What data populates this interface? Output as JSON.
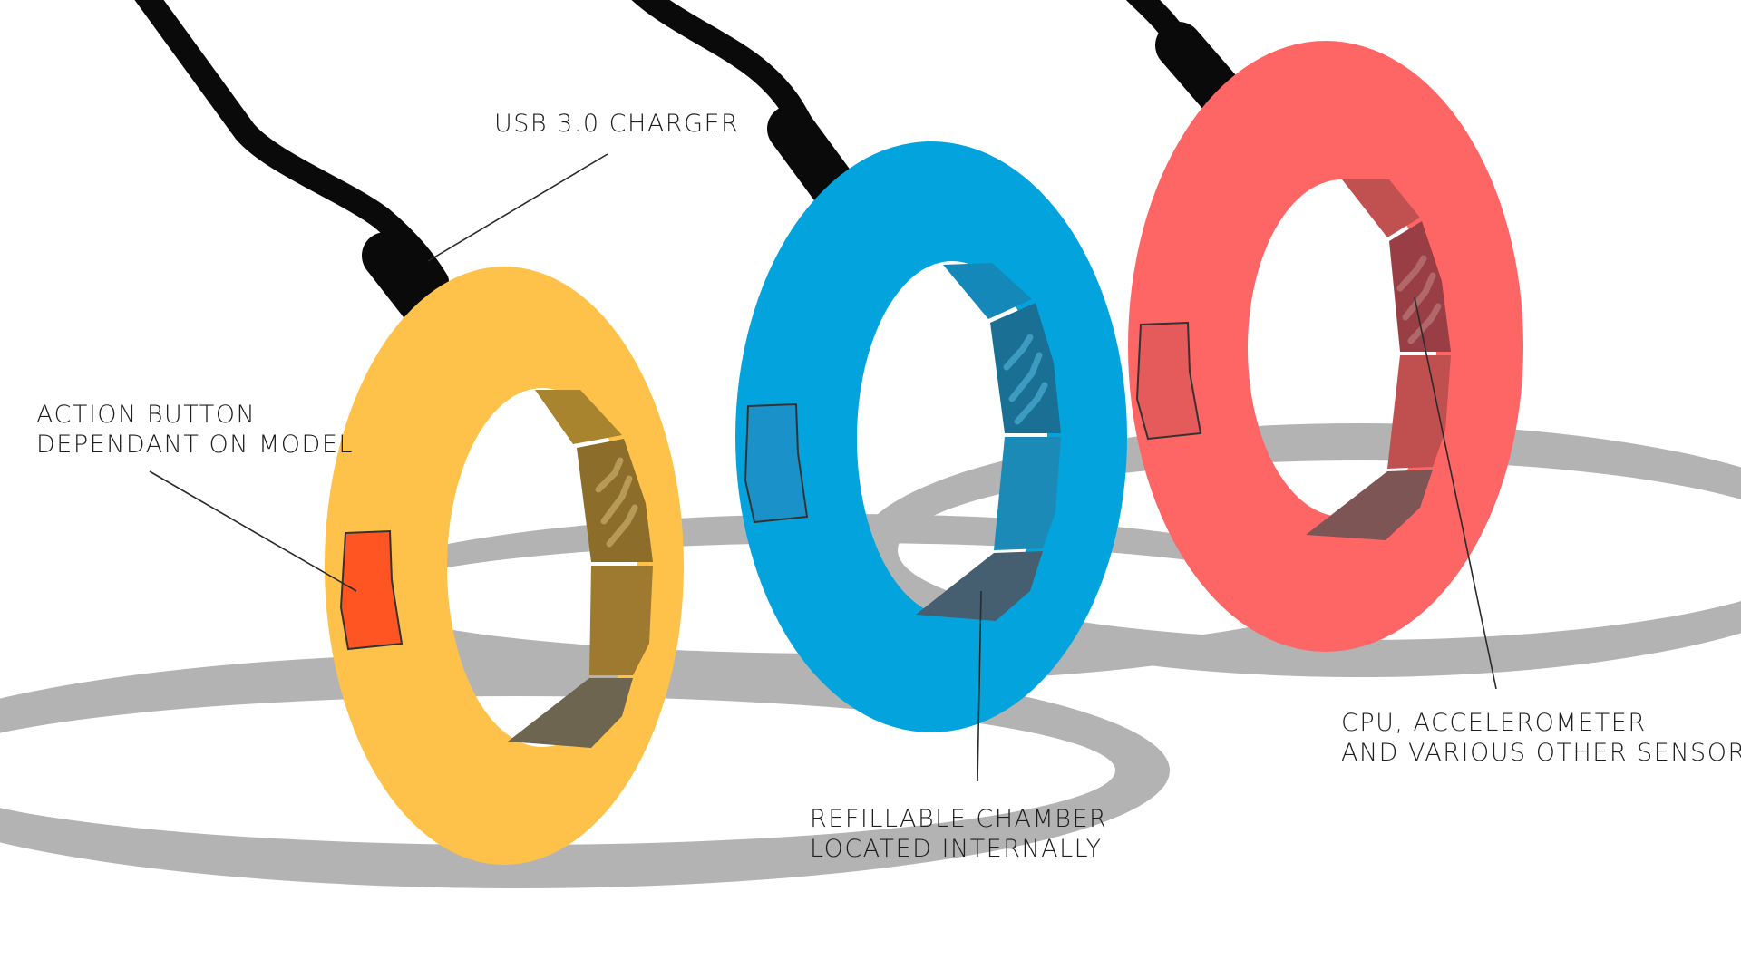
{
  "colors": {
    "background": "#ffffff",
    "shadow": "#b3b3b3",
    "cable": "#0a0a0a",
    "ring_yellow": "#fec24a",
    "ring_blue": "#03a4dd",
    "ring_red": "#fe6565",
    "action_button": "#fe5522",
    "leader_line": "#2a2a2a"
  },
  "labels": {
    "usb_charger": "USB 3.0 CHARGER",
    "action_button": {
      "line1": "ACTION BUTTON",
      "line2": "DEPENDANT ON MODEL"
    },
    "refillable_chamber": {
      "line1": "REFILLABLE CHAMBER",
      "line2": "LOCATED INTERNALLY"
    },
    "cpu_sensors": {
      "line1": "CPU, ACCELEROMETER",
      "line2": "AND VARIOUS OTHER SENSORS"
    }
  },
  "icons": {
    "ring": "ring-icon",
    "cable": "cable-icon",
    "button": "action-button-icon"
  }
}
